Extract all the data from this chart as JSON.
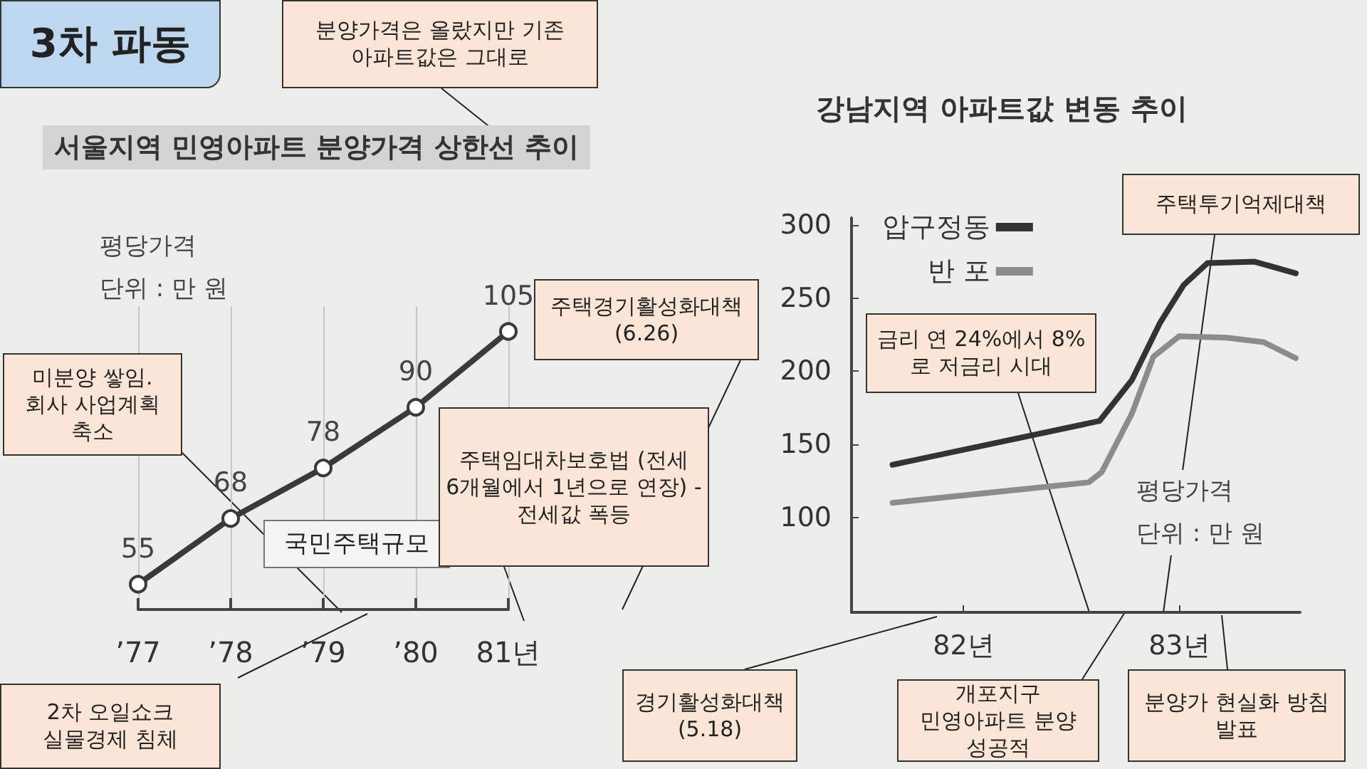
{
  "chart_data": [
    {
      "type": "line",
      "title": "서울지역 민영아파트 분양가격 상한선 추이",
      "ylabel": "평당가격\n단위 : 만 원",
      "categories": [
        "’77",
        "’78",
        "’79",
        "’80",
        "81년"
      ],
      "series": [
        {
          "color": "#3a3a3a",
          "values": [
            55,
            68,
            78,
            90,
            105
          ]
        }
      ],
      "marker": "circle",
      "line_style": "solid",
      "data_labels": true,
      "grid": "x",
      "tick_labels": "x",
      "annotations": [
        "3차 파동",
        "분양가격은 올랐지만 기존 아파트값은 그대로",
        "미분양 쌓임. 회사 사업계획 축소",
        "국민주택규모",
        "2차 오일쇼크 실물경제 침체",
        "주택경기활성화대책(6.26)",
        "주택임대차보호법 (전세 6개월에서 1년으로 연장) - 전세값 폭등"
      ]
    },
    {
      "type": "line",
      "title": "강남지역 아파트값 변동 추이",
      "ylabel": "평당가격\n단위 : 만 원",
      "xlim": [
        81.48,
        83.56
      ],
      "xticks": [
        {
          "value": 82,
          "label": "82년"
        },
        {
          "value": 83,
          "label": "83년"
        }
      ],
      "ylim": [
        35,
        305
      ],
      "yticks": [
        100,
        150,
        200,
        250,
        300
      ],
      "series": [
        {
          "name": "압구정동",
          "color": "#333333",
          "x": [
            81.67,
            82.63,
            82.78,
            82.91,
            83.02,
            83.13,
            83.35,
            83.54
          ],
          "values": [
            136,
            166,
            194,
            233,
            259,
            274,
            275,
            267
          ]
        },
        {
          "name": "반 포",
          "color": "#8c8c8c",
          "x": [
            81.67,
            82.58,
            82.64,
            82.78,
            82.88,
            83.0,
            83.22,
            83.39,
            83.54
          ],
          "values": [
            110,
            124,
            131,
            171,
            210,
            224,
            223,
            220,
            209
          ]
        }
      ],
      "marker": "none",
      "line_style": "solid",
      "grid": false,
      "legend": "top",
      "annotations": [
        "경기활성화대책 (5.18)",
        "금리 연 24%에서 8%로 저금리 시대",
        "주택투기억제대책",
        "개포지구 민영아파트 분양 성공적",
        "분양가 현실화 방침 발표"
      ]
    }
  ]
}
